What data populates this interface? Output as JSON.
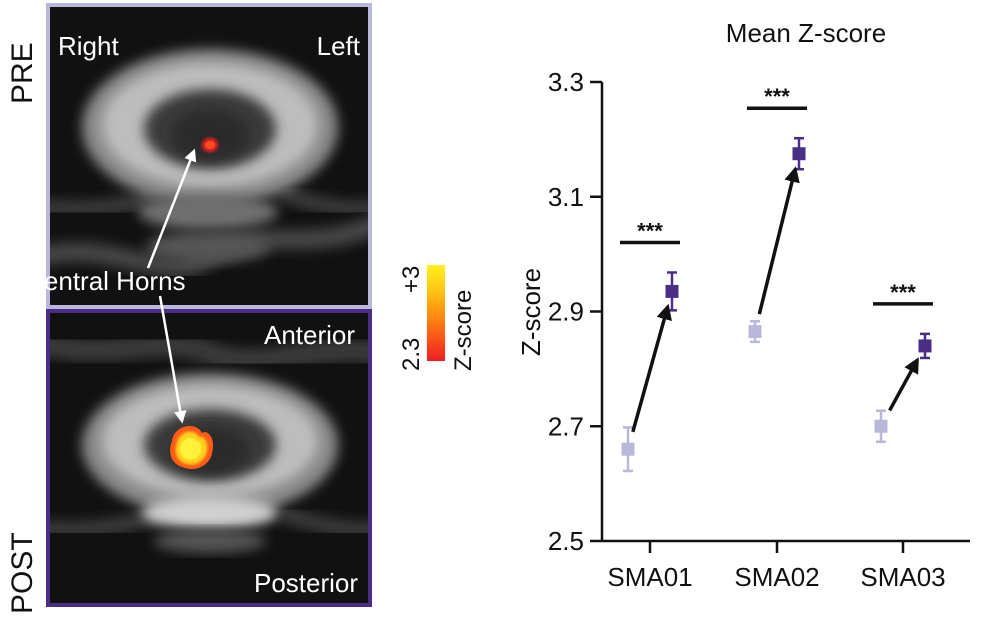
{
  "figure": {
    "row_labels": {
      "pre": "PRE",
      "post": "POST"
    },
    "image_labels": {
      "right": "Right",
      "left": "Left",
      "ventral_horns": "Ventral Horns",
      "anterior": "Anterior",
      "posterior": "Posterior"
    },
    "colorbar": {
      "max": "+3",
      "min": "2.3",
      "label": "Z-score"
    },
    "colors": {
      "pre_frame": "#b9b7da",
      "post_frame": "#4a2e86",
      "pre_marker": "#b9b7da",
      "post_marker": "#4a2e86",
      "activation_low": "#ee1c22",
      "activation_high": "#fff21e"
    }
  },
  "chart_data": {
    "type": "scatter",
    "title": "Mean Z-score",
    "xlabel": "",
    "ylabel": "Z-score",
    "ylim": [
      2.5,
      3.3
    ],
    "yticks": [
      "2.5",
      "2.7",
      "2.9",
      "3.1",
      "3.3"
    ],
    "categories": [
      "SMA01",
      "SMA02",
      "SMA03"
    ],
    "significance": [
      "***",
      "***",
      "***"
    ],
    "series": [
      {
        "name": "PRE",
        "color": "#b9b7da",
        "values": [
          2.66,
          2.865,
          2.7
        ],
        "errors": [
          0.038,
          0.018,
          0.027
        ]
      },
      {
        "name": "POST",
        "color": "#4a2e86",
        "values": [
          2.935,
          3.175,
          2.84
        ],
        "errors": [
          0.033,
          0.027,
          0.021
        ]
      }
    ]
  }
}
